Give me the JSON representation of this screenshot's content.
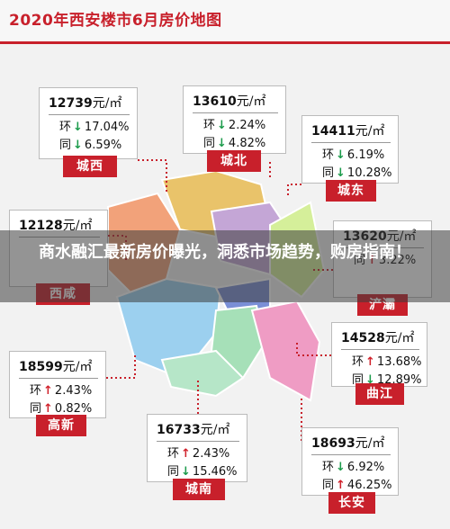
{
  "header": {
    "title": "2020年西安楼市6月房价地图"
  },
  "districts": [
    {
      "name": "城西",
      "price": "12739",
      "unit": "元/㎡",
      "rows": [
        {
          "label": "环",
          "arrow": "↓",
          "value": "17.04%"
        },
        {
          "label": "同",
          "arrow": "↓",
          "value": "6.59%"
        }
      ]
    },
    {
      "name": "城北",
      "price": "13610",
      "unit": "元/㎡",
      "rows": [
        {
          "label": "环",
          "arrow": "↓",
          "value": "2.24%"
        },
        {
          "label": "同",
          "arrow": "↓",
          "value": "4.82%"
        }
      ]
    },
    {
      "name": "城东",
      "price": "14411",
      "unit": "元/㎡",
      "rows": [
        {
          "label": "环",
          "arrow": "↓",
          "value": "6.19%"
        },
        {
          "label": "同",
          "arrow": "↓",
          "value": "10.28%"
        }
      ]
    },
    {
      "name": "西咸",
      "price": "12128",
      "unit": "元/㎡",
      "rows": []
    },
    {
      "name": "浐灞",
      "price": "13620",
      "unit": "元/㎡",
      "rows": [
        {
          "label": "同",
          "arrow": "↑",
          "value": "3.22%"
        }
      ]
    },
    {
      "name": "曲江",
      "price": "14528",
      "unit": "元/㎡",
      "rows": [
        {
          "label": "环",
          "arrow": "↑",
          "value": "13.68%"
        },
        {
          "label": "同",
          "arrow": "↓",
          "value": "12.89%"
        }
      ]
    },
    {
      "name": "高新",
      "price": "18599",
      "unit": "元/㎡",
      "rows": [
        {
          "label": "环",
          "arrow": "↑",
          "value": "2.43%"
        },
        {
          "label": "同",
          "arrow": "↑",
          "value": "0.82%"
        }
      ]
    },
    {
      "name": "城南",
      "price": "16733",
      "unit": "元/㎡",
      "rows": [
        {
          "label": "环",
          "arrow": "↑",
          "value": "2.43%"
        },
        {
          "label": "同",
          "arrow": "↓",
          "value": "15.46%"
        }
      ]
    },
    {
      "name": "长安",
      "price": "18693",
      "unit": "元/㎡",
      "rows": [
        {
          "label": "环",
          "arrow": "↓",
          "value": "6.92%"
        },
        {
          "label": "同",
          "arrow": "↑",
          "value": "46.25%"
        }
      ]
    }
  ],
  "banner": {
    "text": "商水融汇最新房价曝光，洞悉市场趋势，购房指南！"
  }
}
